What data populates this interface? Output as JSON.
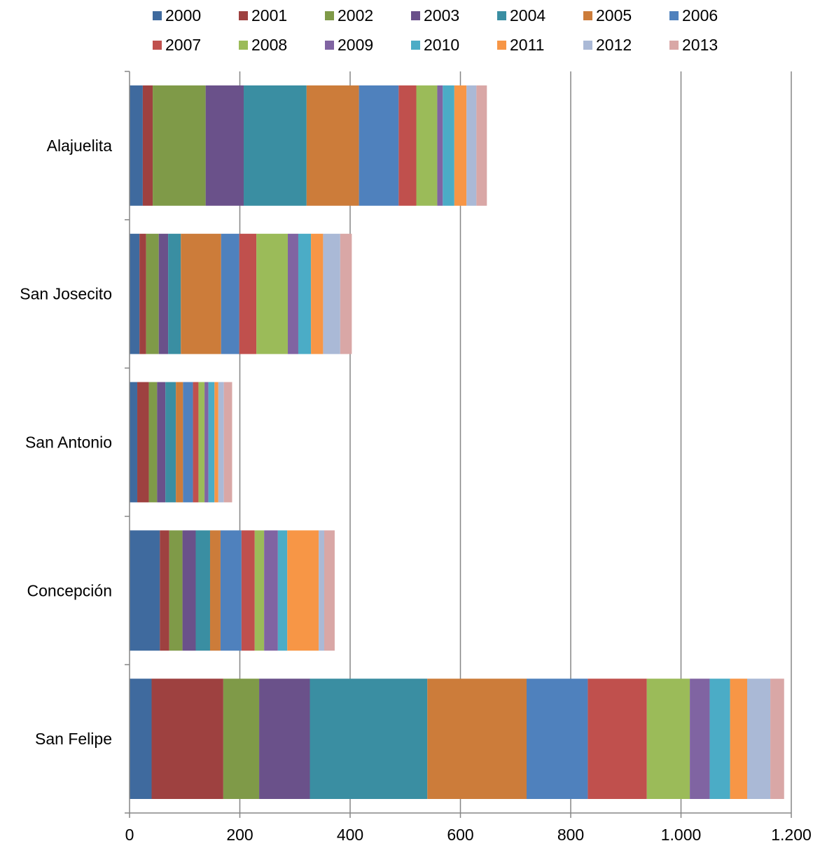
{
  "chart_data": {
    "type": "bar",
    "orientation": "horizontal",
    "stacked": true,
    "title": "",
    "xlabel": "",
    "ylabel": "",
    "xlim": [
      0,
      1200
    ],
    "x_ticks": [
      "0",
      "200",
      "400",
      "600",
      "800",
      "1.000",
      "1.200"
    ],
    "grid": true,
    "legend_position": "top",
    "categories": [
      "Alajuelita",
      "San Josecito",
      "San Antonio",
      "Concepción",
      "San Felipe"
    ],
    "series": [
      {
        "name": "2000",
        "color": "#3F6A9E",
        "values": [
          24,
          18,
          14,
          55,
          40
        ]
      },
      {
        "name": "2001",
        "color": "#9E4140",
        "values": [
          18,
          12,
          21,
          17,
          130
        ]
      },
      {
        "name": "2002",
        "color": "#7F9A48",
        "values": [
          96,
          23,
          15,
          24,
          65
        ]
      },
      {
        "name": "2003",
        "color": "#6A518A",
        "values": [
          69,
          17,
          15,
          24,
          92
        ]
      },
      {
        "name": "2004",
        "color": "#3A8EA2",
        "values": [
          114,
          23,
          19,
          26,
          213
        ]
      },
      {
        "name": "2005",
        "color": "#CC7C3A",
        "values": [
          95,
          73,
          13,
          19,
          180
        ]
      },
      {
        "name": "2006",
        "color": "#4F81BD",
        "values": [
          72,
          33,
          18,
          38,
          111
        ]
      },
      {
        "name": "2007",
        "color": "#C0504D",
        "values": [
          32,
          31,
          10,
          24,
          107
        ]
      },
      {
        "name": "2008",
        "color": "#9BBB59",
        "values": [
          38,
          57,
          11,
          17,
          78
        ]
      },
      {
        "name": "2009",
        "color": "#8064A2",
        "values": [
          10,
          19,
          7,
          25,
          36
        ]
      },
      {
        "name": "2010",
        "color": "#4BACC6",
        "values": [
          21,
          23,
          11,
          17,
          37
        ]
      },
      {
        "name": "2011",
        "color": "#F79646",
        "values": [
          22,
          22,
          7,
          57,
          31
        ]
      },
      {
        "name": "2012",
        "color": "#AAB9D6",
        "values": [
          18,
          31,
          10,
          10,
          42
        ]
      },
      {
        "name": "2013",
        "color": "#D9A7A6",
        "values": [
          19,
          21,
          15,
          19,
          25
        ]
      }
    ]
  }
}
